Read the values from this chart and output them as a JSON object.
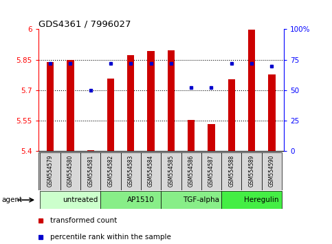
{
  "title": "GDS4361 / 7996027",
  "samples": [
    "GSM554579",
    "GSM554580",
    "GSM554581",
    "GSM554582",
    "GSM554583",
    "GSM554584",
    "GSM554585",
    "GSM554586",
    "GSM554587",
    "GSM554588",
    "GSM554589",
    "GSM554590"
  ],
  "bar_values": [
    5.838,
    5.848,
    5.405,
    5.758,
    5.873,
    5.893,
    5.897,
    5.555,
    5.535,
    5.755,
    5.997,
    5.778
  ],
  "percentile_values": [
    72,
    72,
    50,
    72,
    72,
    72,
    72,
    52,
    52,
    72,
    72,
    70
  ],
  "ylim_left": [
    5.4,
    6.0
  ],
  "ylim_right": [
    0,
    100
  ],
  "yticks_left": [
    5.4,
    5.55,
    5.7,
    5.85,
    6.0
  ],
  "ytick_labels_left": [
    "5.4",
    "5.55",
    "5.7",
    "5.85",
    "6"
  ],
  "yticks_right": [
    0,
    25,
    50,
    75,
    100
  ],
  "ytick_labels_right": [
    "0",
    "25",
    "50",
    "75",
    "100%"
  ],
  "hlines": [
    5.55,
    5.7,
    5.85
  ],
  "bar_color": "#cc0000",
  "percentile_color": "#0000cc",
  "bar_bottom": 5.4,
  "agents": [
    {
      "label": "untreated",
      "start": 0,
      "end": 3,
      "color": "#ccffcc"
    },
    {
      "label": "AP1510",
      "start": 3,
      "end": 6,
      "color": "#88ee88"
    },
    {
      "label": "TGF-alpha",
      "start": 6,
      "end": 9,
      "color": "#88ee88"
    },
    {
      "label": "Heregulin",
      "start": 9,
      "end": 12,
      "color": "#44ee44"
    }
  ],
  "agent_label": "agent",
  "legend_items": [
    {
      "color": "#cc0000",
      "label": "transformed count"
    },
    {
      "color": "#0000cc",
      "label": "percentile rank within the sample"
    }
  ],
  "bar_width": 0.35,
  "plot_bg": "#ffffff"
}
